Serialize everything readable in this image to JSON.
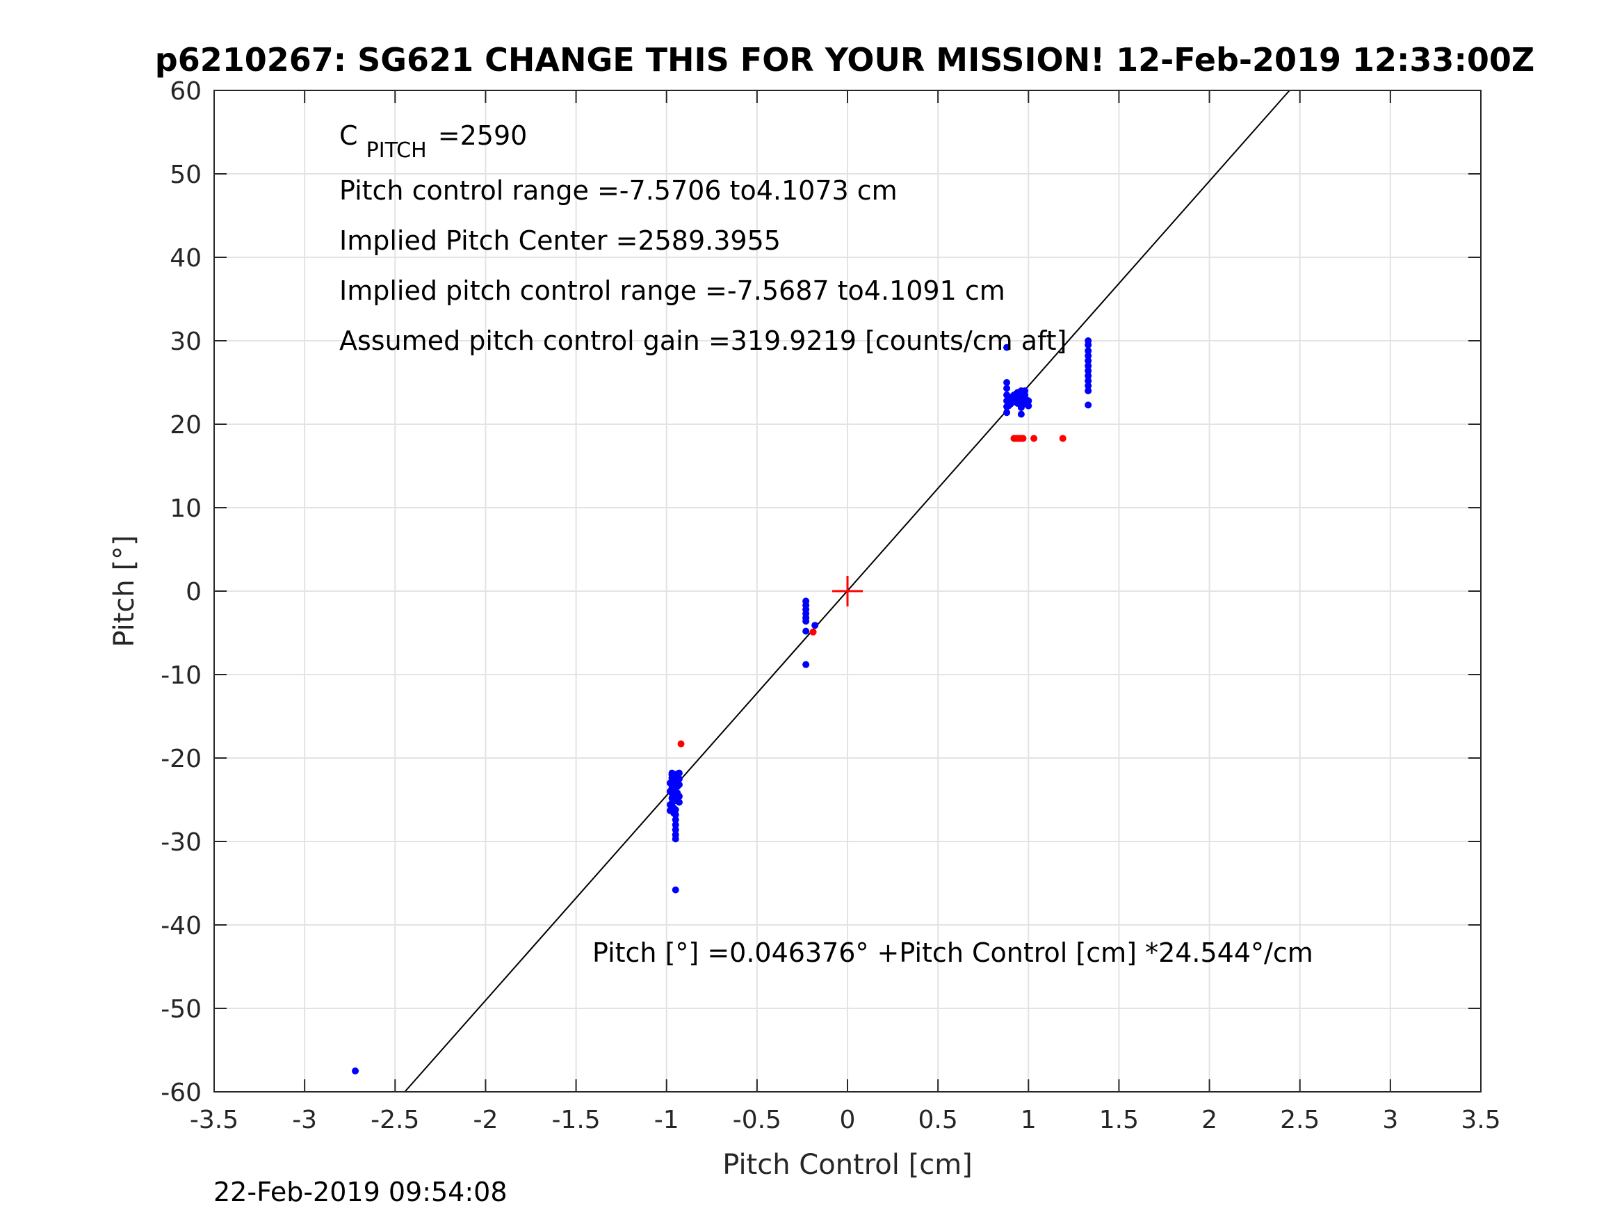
{
  "chart_data": {
    "type": "scatter",
    "title": "p6210267: SG621 CHANGE THIS FOR YOUR MISSION! 12-Feb-2019 12:33:00Z",
    "xlabel": "Pitch Control [cm]",
    "ylabel": "Pitch [°]",
    "xlim": [
      -3.5,
      3.5
    ],
    "ylim": [
      -60,
      60
    ],
    "xticks": [
      -3.5,
      -3,
      -2.5,
      -2,
      -1.5,
      -1,
      -0.5,
      0,
      0.5,
      1,
      1.5,
      2,
      2.5,
      3,
      3.5
    ],
    "xtick_labels": [
      "-3.5",
      "-3",
      "-2.5",
      "-2",
      "-1.5",
      "-1",
      "-0.5",
      "0",
      "0.5",
      "1",
      "1.5",
      "2",
      "2.5",
      "3",
      "3.5"
    ],
    "yticks": [
      -60,
      -50,
      -40,
      -30,
      -20,
      -10,
      0,
      10,
      20,
      30,
      40,
      50,
      60
    ],
    "ytick_labels": [
      "-60",
      "-50",
      "-40",
      "-30",
      "-20",
      "-10",
      "0",
      "10",
      "20",
      "30",
      "40",
      "50",
      "60"
    ],
    "grid": true,
    "colors": {
      "blue": "#0000ff",
      "red": "#ff0000",
      "fit": "#000000",
      "grid": "#e3e3e3",
      "axis": "#262626"
    },
    "fit_line": {
      "intercept": 0.046376,
      "slope": 24.544
    },
    "center_marker": {
      "x": 0,
      "y": 0,
      "color": "#ff0000",
      "shape": "plus"
    },
    "series": [
      {
        "color": "#0000ff",
        "points": [
          [
            -2.72,
            -57.5
          ],
          [
            -0.97,
            -21.8
          ],
          [
            -0.97,
            -22.4
          ],
          [
            -0.97,
            -23.0
          ],
          [
            -0.97,
            -23.6
          ],
          [
            -0.97,
            -24.2
          ],
          [
            -0.97,
            -24.8
          ],
          [
            -0.97,
            -25.4
          ],
          [
            -0.96,
            -26.0
          ],
          [
            -0.96,
            -26.6
          ],
          [
            -0.97,
            -22.0
          ],
          [
            -0.96,
            -23.3
          ],
          [
            -0.96,
            -24.6
          ],
          [
            -0.95,
            -22.1
          ],
          [
            -0.95,
            -22.7
          ],
          [
            -0.95,
            -23.3
          ],
          [
            -0.95,
            -23.9
          ],
          [
            -0.95,
            -24.5
          ],
          [
            -0.95,
            -25.1
          ],
          [
            -0.95,
            -26.2
          ],
          [
            -0.95,
            -26.8
          ],
          [
            -0.95,
            -27.4
          ],
          [
            -0.95,
            -28.0
          ],
          [
            -0.95,
            -28.6
          ],
          [
            -0.95,
            -29.2
          ],
          [
            -0.95,
            -29.7
          ],
          [
            -0.94,
            -21.9
          ],
          [
            -0.94,
            -22.6
          ],
          [
            -0.94,
            -23.4
          ],
          [
            -0.94,
            -24.2
          ],
          [
            -0.94,
            -25.0
          ],
          [
            -0.93,
            -21.8
          ],
          [
            -0.93,
            -22.5
          ],
          [
            -0.93,
            -23.2
          ],
          [
            -0.93,
            -24.6
          ],
          [
            -0.93,
            -25.3
          ],
          [
            -0.98,
            -23.0
          ],
          [
            -0.98,
            -24.0
          ],
          [
            -0.98,
            -25.6
          ],
          [
            -0.98,
            -26.3
          ],
          [
            -0.95,
            -35.8
          ],
          [
            -0.23,
            -1.2
          ],
          [
            -0.23,
            -1.7
          ],
          [
            -0.23,
            -2.2
          ],
          [
            -0.23,
            -2.7
          ],
          [
            -0.23,
            -3.2
          ],
          [
            -0.23,
            -3.6
          ],
          [
            -0.23,
            -4.8
          ],
          [
            -0.23,
            -8.8
          ],
          [
            -0.18,
            -4.1
          ],
          [
            0.88,
            29.2
          ],
          [
            0.88,
            25.0
          ],
          [
            0.88,
            24.3
          ],
          [
            0.88,
            23.5
          ],
          [
            0.88,
            22.8
          ],
          [
            0.88,
            22.1
          ],
          [
            0.88,
            21.4
          ],
          [
            0.89,
            23.0
          ],
          [
            0.89,
            22.2
          ],
          [
            0.9,
            23.1
          ],
          [
            0.9,
            22.4
          ],
          [
            0.91,
            23.3
          ],
          [
            0.91,
            22.6
          ],
          [
            0.92,
            23.5
          ],
          [
            0.92,
            22.8
          ],
          [
            0.93,
            23.6
          ],
          [
            0.93,
            22.9
          ],
          [
            0.94,
            23.8
          ],
          [
            0.94,
            22.5
          ],
          [
            0.95,
            23.7
          ],
          [
            0.95,
            23.0
          ],
          [
            0.96,
            24.0
          ],
          [
            0.96,
            23.3
          ],
          [
            0.96,
            22.0
          ],
          [
            0.96,
            21.2
          ],
          [
            0.97,
            23.9
          ],
          [
            0.97,
            23.2
          ],
          [
            0.97,
            22.4
          ],
          [
            0.98,
            24.0
          ],
          [
            0.98,
            23.5
          ],
          [
            0.98,
            22.8
          ],
          [
            0.99,
            22.9
          ],
          [
            0.99,
            22.4
          ],
          [
            1.0,
            22.8
          ],
          [
            1.0,
            22.2
          ],
          [
            1.33,
            30.0
          ],
          [
            1.33,
            29.5
          ],
          [
            1.33,
            28.8
          ],
          [
            1.33,
            28.2
          ],
          [
            1.33,
            27.6
          ],
          [
            1.33,
            27.0
          ],
          [
            1.33,
            26.4
          ],
          [
            1.33,
            25.8
          ],
          [
            1.33,
            25.2
          ],
          [
            1.33,
            24.6
          ],
          [
            1.33,
            24.0
          ],
          [
            1.33,
            22.3
          ]
        ]
      },
      {
        "color": "#ff0000",
        "points": [
          [
            -0.92,
            -18.3
          ],
          [
            -0.19,
            -4.9
          ],
          [
            0.92,
            18.3
          ],
          [
            0.93,
            18.3
          ],
          [
            0.94,
            18.3
          ],
          [
            0.95,
            18.3
          ],
          [
            0.96,
            18.3
          ],
          [
            0.97,
            18.3
          ],
          [
            1.03,
            18.3
          ],
          [
            1.19,
            18.3
          ]
        ]
      }
    ],
    "annotations": {
      "cpitch_base": "C",
      "cpitch_sub": "PITCH",
      "cpitch_value": "=2590",
      "line2": "Pitch control range =-7.5706 to4.1073 cm",
      "line3": "Implied Pitch Center =2589.3955",
      "line4": "Implied pitch control range =-7.5687 to4.1091 cm",
      "line5": "Assumed pitch control gain =319.9219 [counts/cm aft]",
      "equation": "Pitch [°] =0.046376° +Pitch Control [cm] *24.544°/cm"
    },
    "timestamp": "22-Feb-2019 09:54:08"
  }
}
